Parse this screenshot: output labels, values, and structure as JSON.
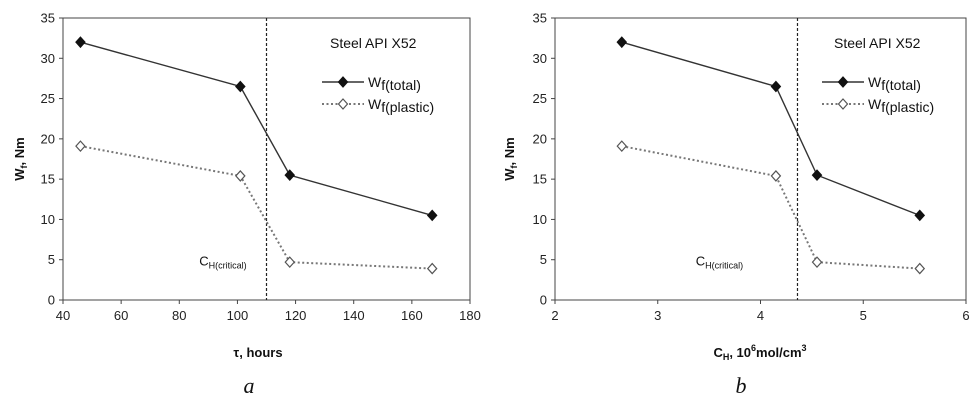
{
  "chart_data": [
    {
      "type": "line",
      "panel_label": "a",
      "annotation_title": "Steel API X52",
      "xlabel_main": "τ, hours",
      "ylabel_main": "W",
      "ylabel_sub": "f",
      "ylabel_unit": ", Nm",
      "xlim": [
        40,
        180
      ],
      "ylim": [
        0,
        35
      ],
      "xticks": [
        40,
        60,
        80,
        100,
        120,
        140,
        160,
        180
      ],
      "yticks": [
        0,
        5,
        10,
        15,
        20,
        25,
        30,
        35
      ],
      "critical_x": 110,
      "critical_label_main": "C",
      "critical_label_sub": "H(critical)",
      "critical_label_pos": [
        95,
        4.3
      ],
      "legend_position": "top-right",
      "series": [
        {
          "name_main": "W",
          "name_sub": "f(total)",
          "style": "solid",
          "marker": "filled-diamond",
          "x": [
            46,
            101,
            118,
            167
          ],
          "y": [
            32,
            26.5,
            15.5,
            10.5
          ]
        },
        {
          "name_main": "W",
          "name_sub": "f(plastic)",
          "style": "dotted",
          "marker": "open-diamond",
          "x": [
            46,
            101,
            118,
            167
          ],
          "y": [
            19.1,
            15.4,
            4.7,
            3.9
          ]
        }
      ]
    },
    {
      "type": "line",
      "panel_label": "b",
      "annotation_title": "Steel API X52",
      "xlabel_main": "C",
      "xlabel_sub": "H",
      "xlabel_mid": ", 10",
      "xlabel_sup": "6",
      "xlabel_tail": "mol/cm",
      "xlabel_sup2": "3",
      "ylabel_main": "W",
      "ylabel_sub": "f",
      "ylabel_unit": ", Nm",
      "xlim": [
        2,
        6
      ],
      "ylim": [
        0,
        35
      ],
      "xticks": [
        2,
        3,
        4,
        5,
        6
      ],
      "yticks": [
        0,
        5,
        10,
        15,
        20,
        25,
        30,
        35
      ],
      "critical_x": 4.36,
      "critical_label_main": "C",
      "critical_label_sub": "H(critical)",
      "critical_label_pos": [
        3.6,
        4.3
      ],
      "legend_position": "top-right",
      "series": [
        {
          "name_main": "W",
          "name_sub": "f(total)",
          "style": "solid",
          "marker": "filled-diamond",
          "x": [
            2.65,
            4.15,
            4.55,
            5.55
          ],
          "y": [
            32,
            26.5,
            15.5,
            10.5
          ]
        },
        {
          "name_main": "W",
          "name_sub": "f(plastic)",
          "style": "dotted",
          "marker": "open-diamond",
          "x": [
            2.65,
            4.15,
            4.55,
            5.55
          ],
          "y": [
            19.1,
            15.4,
            4.7,
            3.9
          ]
        }
      ]
    }
  ]
}
